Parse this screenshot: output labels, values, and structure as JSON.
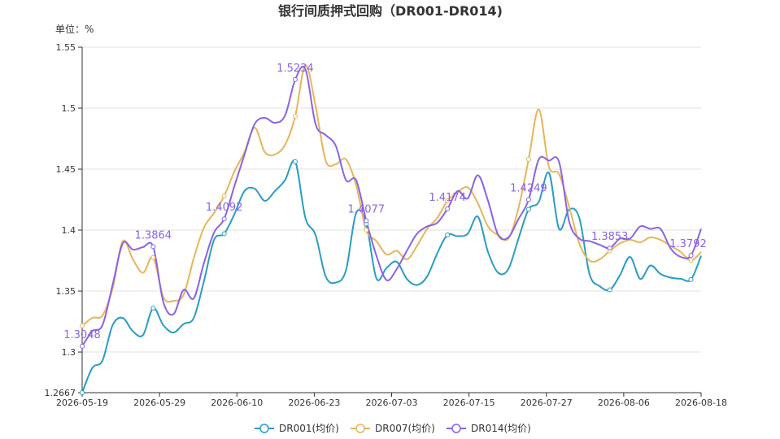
{
  "chart_data": {
    "type": "line",
    "title": "银行间质押式回购（DR001-DR014)",
    "unit_label": "单位：%",
    "ylim": [
      1.2667,
      1.55
    ],
    "y_ticks": [
      1.2667,
      1.3,
      1.35,
      1.4,
      1.45,
      1.5,
      1.55
    ],
    "y_tick_labels": [
      "1.2667",
      "1.3",
      "1.35",
      "1.4",
      "1.45",
      "1.5",
      "1.55"
    ],
    "x_ticks": [
      "2026-05-19",
      "2026-05-29",
      "2026-06-10",
      "2026-06-23",
      "2026-07-03",
      "2026-07-15",
      "2026-07-27",
      "2026-08-06",
      "2026-08-18"
    ],
    "grid": true,
    "legend_position": "bottom-center",
    "series": [
      {
        "name": "DR001(均价)",
        "color": "#2a9cc5",
        "values": [
          1.2667,
          1.287,
          1.293,
          1.322,
          1.328,
          1.317,
          1.314,
          1.336,
          1.322,
          1.316,
          1.323,
          1.328,
          1.358,
          1.392,
          1.397,
          1.413,
          1.432,
          1.434,
          1.424,
          1.432,
          1.441,
          1.4561,
          1.41,
          1.396,
          1.362,
          1.357,
          1.367,
          1.414,
          1.405,
          1.3604,
          1.369,
          1.374,
          1.36,
          1.355,
          1.362,
          1.381,
          1.396,
          1.395,
          1.397,
          1.411,
          1.382,
          1.365,
          1.368,
          1.393,
          1.417,
          1.423,
          1.447,
          1.401,
          1.417,
          1.41,
          1.364,
          1.354,
          1.351,
          1.363,
          1.378,
          1.36,
          1.371,
          1.364,
          1.361,
          1.36,
          1.3594,
          1.379
        ]
      },
      {
        "name": "DR007(均价)",
        "color": "#e8b55a",
        "values": [
          1.3215,
          1.328,
          1.33,
          1.352,
          1.391,
          1.376,
          1.365,
          1.3775,
          1.345,
          1.342,
          1.347,
          1.377,
          1.402,
          1.414,
          1.428,
          1.448,
          1.464,
          1.484,
          1.464,
          1.462,
          1.47,
          1.4933,
          1.535,
          1.502,
          1.457,
          1.454,
          1.458,
          1.437,
          1.4,
          1.391,
          1.38,
          1.383,
          1.376,
          1.387,
          1.401,
          1.41,
          1.424,
          1.431,
          1.435,
          1.422,
          1.403,
          1.396,
          1.393,
          1.418,
          1.458,
          1.499,
          1.452,
          1.446,
          1.419,
          1.389,
          1.375,
          1.376,
          1.383,
          1.389,
          1.392,
          1.39,
          1.394,
          1.392,
          1.387,
          1.382,
          1.375,
          1.382
        ]
      },
      {
        "name": "DR014(均价)",
        "color": "#8a63e6",
        "values": [
          1.3048,
          1.317,
          1.322,
          1.355,
          1.389,
          1.384,
          1.386,
          1.3864,
          1.341,
          1.331,
          1.351,
          1.344,
          1.373,
          1.398,
          1.4092,
          1.436,
          1.462,
          1.487,
          1.492,
          1.488,
          1.494,
          1.5234,
          1.532,
          1.487,
          1.478,
          1.469,
          1.441,
          1.441,
          1.4077,
          1.379,
          1.359,
          1.368,
          1.383,
          1.397,
          1.403,
          1.406,
          1.4174,
          1.432,
          1.426,
          1.445,
          1.424,
          1.396,
          1.394,
          1.409,
          1.4249,
          1.458,
          1.457,
          1.456,
          1.407,
          1.393,
          1.391,
          1.388,
          1.3853,
          1.393,
          1.393,
          1.403,
          1.401,
          1.401,
          1.385,
          1.378,
          1.3792,
          1.401
        ]
      }
    ],
    "point_labels": [
      {
        "series": 2,
        "index": 0,
        "text": "1.3048"
      },
      {
        "series": 2,
        "index": 7,
        "text": "1.3864"
      },
      {
        "series": 2,
        "index": 14,
        "text": "1.4092"
      },
      {
        "series": 2,
        "index": 21,
        "text": "1.5234"
      },
      {
        "series": 2,
        "index": 28,
        "text": "1.4077"
      },
      {
        "series": 2,
        "index": 36,
        "text": "1.4174"
      },
      {
        "series": 2,
        "index": 44,
        "text": "1.4249"
      },
      {
        "series": 2,
        "index": 52,
        "text": "1.3853"
      },
      {
        "series": 2,
        "index": 60,
        "text": "1.3792"
      }
    ],
    "marker_indices": [
      0,
      7,
      14,
      21,
      28,
      36,
      44,
      52,
      60
    ]
  }
}
